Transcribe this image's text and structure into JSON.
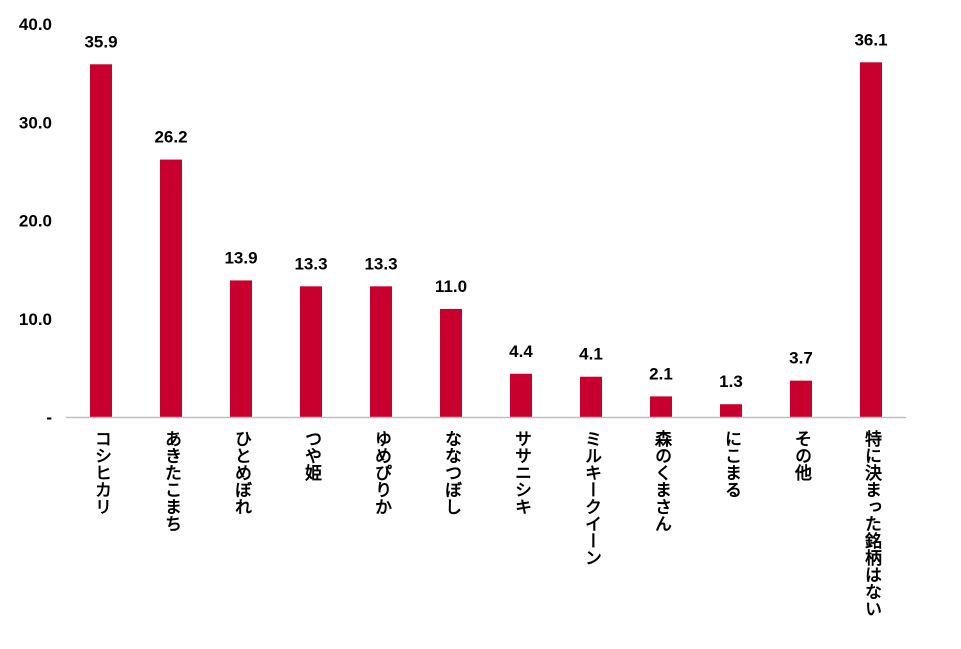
{
  "chart_data": {
    "type": "bar",
    "title": "",
    "xlabel": "",
    "ylabel": "",
    "categories": [
      "コシヒカリ",
      "あきたこまち",
      "ひとめぼれ",
      "つや姫",
      "ゆめぴりか",
      "ななつぼし",
      "ササニシキ",
      "ミルキークイーン",
      "森のくまさん",
      "にこまる",
      "その他",
      "特に決まった銘柄はない"
    ],
    "values": [
      35.9,
      26.2,
      13.9,
      13.3,
      13.3,
      11.0,
      4.4,
      4.1,
      2.1,
      1.3,
      3.7,
      36.1
    ],
    "value_labels": [
      "35.9",
      "26.2",
      "13.9",
      "13.3",
      "13.3",
      "11.0",
      "4.4",
      "4.1",
      "2.1",
      "1.3",
      "3.7",
      "36.1"
    ],
    "ylim": [
      0,
      40
    ],
    "yticks": [
      0,
      10,
      20,
      30,
      40
    ],
    "ytick_labels": [
      "-",
      "10.0",
      "20.0",
      "30.0",
      "40.0"
    ],
    "grid": false,
    "legend": "none",
    "bar_color": "#c8002d",
    "axis_color": "#bfbfbf"
  }
}
